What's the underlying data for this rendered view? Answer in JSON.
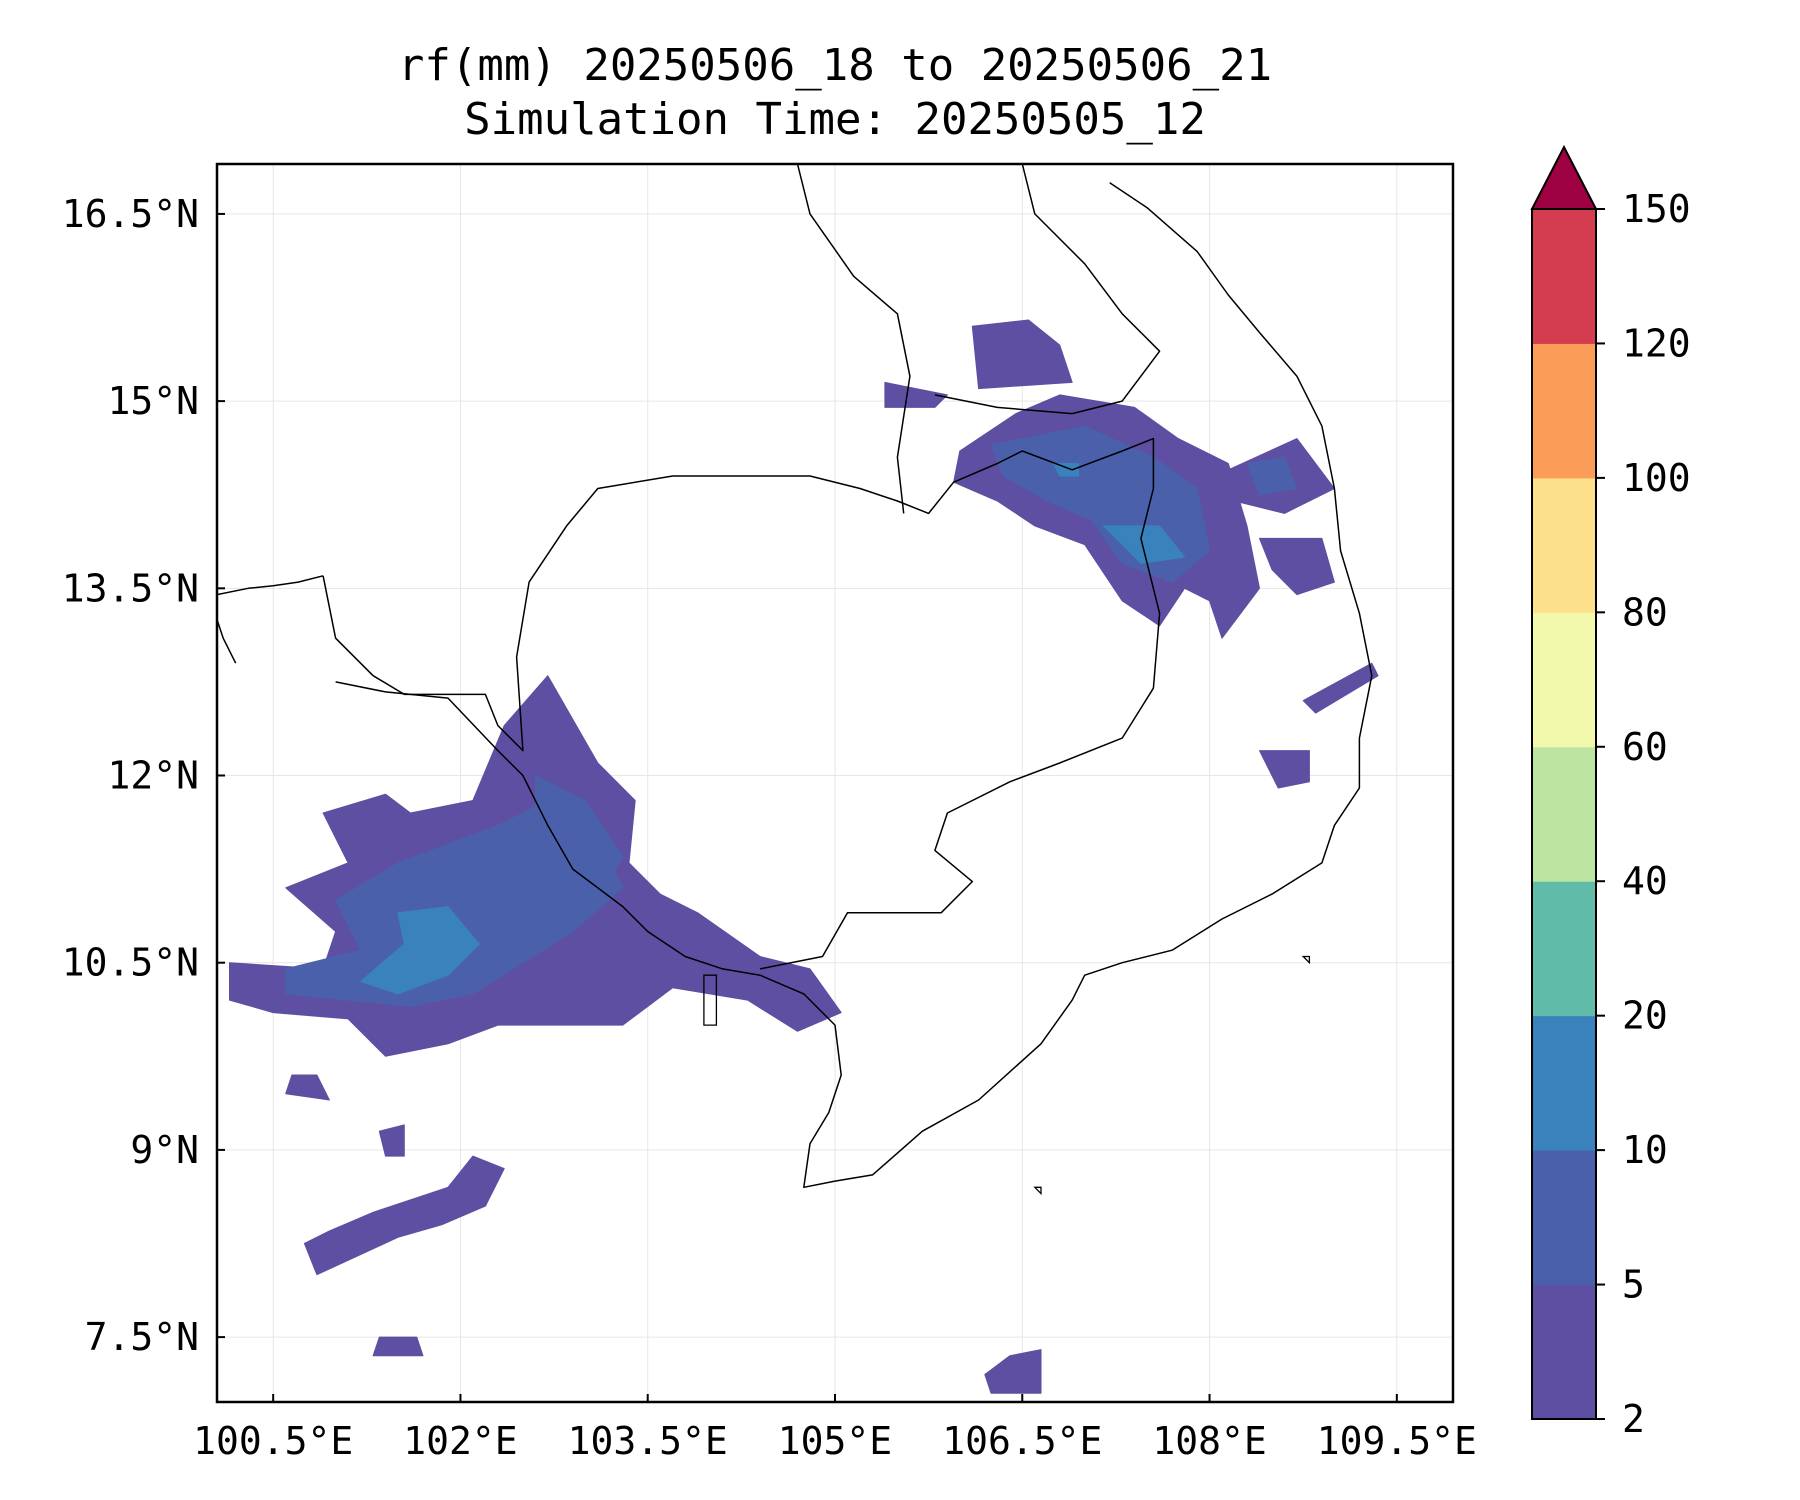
{
  "title": {
    "line1": "rf(mm) 20250506_18 to 20250506_21",
    "line2": "Simulation Time: 20250505_12"
  },
  "map": {
    "lon_range": [
      100.05,
      109.95
    ],
    "lat_range": [
      6.98,
      16.9
    ],
    "lon_ticks": [
      {
        "value": 100.5,
        "label": "100.5°E"
      },
      {
        "value": 102.0,
        "label": "102°E"
      },
      {
        "value": 103.5,
        "label": "103.5°E"
      },
      {
        "value": 105.0,
        "label": "105°E"
      },
      {
        "value": 106.5,
        "label": "106.5°E"
      },
      {
        "value": 108.0,
        "label": "108°E"
      },
      {
        "value": 109.5,
        "label": "109.5°E"
      }
    ],
    "lat_ticks": [
      {
        "value": 16.5,
        "label": "16.5°N"
      },
      {
        "value": 15.0,
        "label": "15°N"
      },
      {
        "value": 13.5,
        "label": "13.5°N"
      },
      {
        "value": 12.0,
        "label": "12°N"
      },
      {
        "value": 10.5,
        "label": "10.5°N"
      },
      {
        "value": 9.0,
        "label": "9°N"
      },
      {
        "value": 7.5,
        "label": "7.5°N"
      }
    ],
    "grid": true,
    "rain_areas": [
      {
        "level": 1,
        "points": [
          [
            100.15,
            10.5
          ],
          [
            100.9,
            10.45
          ],
          [
            101.0,
            10.75
          ],
          [
            100.6,
            11.1
          ],
          [
            101.1,
            11.3
          ],
          [
            100.9,
            11.7
          ],
          [
            101.4,
            11.85
          ],
          [
            101.6,
            11.7
          ],
          [
            102.1,
            11.8
          ],
          [
            102.35,
            12.4
          ],
          [
            102.7,
            12.8
          ],
          [
            103.1,
            12.1
          ],
          [
            103.4,
            11.8
          ],
          [
            103.35,
            11.3
          ],
          [
            103.6,
            11.05
          ],
          [
            103.9,
            10.9
          ],
          [
            104.4,
            10.55
          ],
          [
            104.8,
            10.45
          ],
          [
            105.05,
            10.1
          ],
          [
            104.7,
            9.95
          ],
          [
            104.3,
            10.2
          ],
          [
            103.7,
            10.3
          ],
          [
            103.3,
            10.0
          ],
          [
            102.8,
            10.0
          ],
          [
            102.3,
            10.0
          ],
          [
            101.9,
            9.85
          ],
          [
            101.4,
            9.75
          ],
          [
            101.1,
            10.05
          ],
          [
            100.5,
            10.1
          ],
          [
            100.15,
            10.2
          ]
        ]
      },
      {
        "level": 2,
        "points": [
          [
            100.6,
            10.45
          ],
          [
            101.2,
            10.6
          ],
          [
            101.0,
            11.0
          ],
          [
            101.5,
            11.3
          ],
          [
            101.9,
            11.45
          ],
          [
            102.3,
            11.6
          ],
          [
            102.8,
            11.85
          ],
          [
            103.1,
            11.5
          ],
          [
            103.3,
            11.1
          ],
          [
            102.9,
            10.75
          ],
          [
            102.5,
            10.5
          ],
          [
            102.1,
            10.25
          ],
          [
            101.6,
            10.15
          ],
          [
            101.1,
            10.2
          ],
          [
            100.6,
            10.25
          ]
        ]
      },
      {
        "level": 2,
        "points": [
          [
            102.6,
            12.0
          ],
          [
            103.0,
            11.8
          ],
          [
            103.3,
            11.35
          ],
          [
            103.1,
            11.0
          ],
          [
            102.8,
            11.4
          ],
          [
            102.6,
            11.7
          ]
        ]
      },
      {
        "level": 3,
        "points": [
          [
            101.2,
            10.35
          ],
          [
            101.55,
            10.65
          ],
          [
            101.5,
            10.9
          ],
          [
            101.9,
            10.95
          ],
          [
            102.15,
            10.65
          ],
          [
            101.9,
            10.4
          ],
          [
            101.5,
            10.25
          ]
        ]
      },
      {
        "level": 1,
        "points": [
          [
            100.85,
            8.0
          ],
          [
            101.5,
            8.3
          ],
          [
            101.85,
            8.4
          ],
          [
            102.2,
            8.55
          ],
          [
            102.35,
            8.85
          ],
          [
            102.1,
            8.95
          ],
          [
            101.9,
            8.7
          ],
          [
            101.6,
            8.6
          ],
          [
            101.3,
            8.5
          ],
          [
            100.95,
            8.35
          ],
          [
            100.75,
            8.25
          ]
        ]
      },
      {
        "level": 1,
        "points": [
          [
            101.35,
            9.15
          ],
          [
            101.55,
            9.2
          ],
          [
            101.55,
            8.95
          ],
          [
            101.4,
            8.95
          ]
        ]
      },
      {
        "level": 1,
        "points": [
          [
            101.3,
            7.35
          ],
          [
            101.7,
            7.35
          ],
          [
            101.65,
            7.5
          ],
          [
            101.35,
            7.5
          ]
        ]
      },
      {
        "level": 1,
        "points": [
          [
            100.6,
            9.45
          ],
          [
            100.95,
            9.4
          ],
          [
            100.85,
            9.6
          ],
          [
            100.65,
            9.6
          ]
        ]
      },
      {
        "level": 1,
        "points": [
          [
            106.25,
            7.05
          ],
          [
            106.65,
            7.05
          ],
          [
            106.65,
            7.4
          ],
          [
            106.4,
            7.35
          ],
          [
            106.2,
            7.2
          ]
        ]
      },
      {
        "level": 1,
        "points": [
          [
            106.0,
            14.6
          ],
          [
            106.45,
            14.9
          ],
          [
            106.8,
            15.05
          ],
          [
            107.4,
            14.95
          ],
          [
            107.75,
            14.7
          ],
          [
            108.15,
            14.5
          ],
          [
            108.3,
            14.0
          ],
          [
            108.4,
            13.5
          ],
          [
            108.1,
            13.1
          ],
          [
            108.0,
            13.4
          ],
          [
            107.8,
            13.5
          ],
          [
            107.6,
            13.2
          ],
          [
            107.3,
            13.4
          ],
          [
            107.0,
            13.85
          ],
          [
            106.6,
            14.0
          ],
          [
            106.3,
            14.2
          ],
          [
            105.95,
            14.35
          ]
        ]
      },
      {
        "level": 1,
        "points": [
          [
            106.15,
            15.1
          ],
          [
            106.9,
            15.15
          ],
          [
            106.8,
            15.45
          ],
          [
            106.55,
            15.65
          ],
          [
            106.1,
            15.6
          ]
        ]
      },
      {
        "level": 1,
        "points": [
          [
            108.15,
            14.45
          ],
          [
            108.7,
            14.7
          ],
          [
            109.0,
            14.3
          ],
          [
            108.6,
            14.1
          ],
          [
            108.2,
            14.2
          ]
        ]
      },
      {
        "level": 1,
        "points": [
          [
            108.4,
            13.9
          ],
          [
            108.9,
            13.9
          ],
          [
            109.0,
            13.55
          ],
          [
            108.7,
            13.45
          ],
          [
            108.5,
            13.65
          ]
        ]
      },
      {
        "level": 1,
        "points": [
          [
            108.4,
            12.2
          ],
          [
            108.8,
            12.2
          ],
          [
            108.8,
            11.95
          ],
          [
            108.55,
            11.9
          ]
        ]
      },
      {
        "level": 1,
        "points": [
          [
            108.75,
            12.6
          ],
          [
            109.3,
            12.9
          ],
          [
            109.35,
            12.8
          ],
          [
            108.85,
            12.5
          ]
        ]
      },
      {
        "level": 1,
        "points": [
          [
            105.4,
            15.15
          ],
          [
            105.9,
            15.05
          ],
          [
            105.8,
            14.95
          ],
          [
            105.4,
            14.95
          ]
        ]
      },
      {
        "level": 2,
        "points": [
          [
            106.25,
            14.65
          ],
          [
            107.0,
            14.8
          ],
          [
            107.55,
            14.55
          ],
          [
            107.9,
            14.3
          ],
          [
            108.0,
            13.8
          ],
          [
            107.7,
            13.55
          ],
          [
            107.3,
            13.7
          ],
          [
            107.05,
            14.05
          ],
          [
            106.7,
            14.2
          ],
          [
            106.35,
            14.4
          ]
        ]
      },
      {
        "level": 2,
        "points": [
          [
            108.3,
            14.5
          ],
          [
            108.6,
            14.55
          ],
          [
            108.7,
            14.3
          ],
          [
            108.4,
            14.25
          ]
        ]
      },
      {
        "level": 3,
        "points": [
          [
            107.15,
            14.0
          ],
          [
            107.6,
            14.0
          ],
          [
            107.8,
            13.75
          ],
          [
            107.45,
            13.7
          ]
        ]
      },
      {
        "level": 3,
        "points": [
          [
            106.75,
            14.5
          ],
          [
            106.95,
            14.5
          ],
          [
            106.95,
            14.4
          ],
          [
            106.8,
            14.4
          ]
        ]
      }
    ],
    "coastline_paths": [
      [
        [
          100.05,
          13.45
        ],
        [
          100.3,
          13.5
        ],
        [
          100.5,
          13.52
        ],
        [
          100.7,
          13.55
        ],
        [
          100.9,
          13.6
        ]
      ],
      [
        [
          100.05,
          13.25
        ],
        [
          100.1,
          13.1
        ],
        [
          100.2,
          12.9
        ]
      ],
      [
        [
          101.0,
          12.75
        ],
        [
          101.4,
          12.67
        ],
        [
          101.9,
          12.62
        ],
        [
          102.3,
          12.2
        ],
        [
          102.5,
          12.0
        ],
        [
          102.7,
          11.6
        ],
        [
          102.9,
          11.25
        ],
        [
          103.1,
          11.1
        ],
        [
          103.3,
          10.95
        ],
        [
          103.5,
          10.75
        ],
        [
          103.8,
          10.55
        ],
        [
          104.1,
          10.45
        ],
        [
          104.4,
          10.4
        ],
        [
          104.75,
          10.25
        ],
        [
          105.0,
          10.0
        ],
        [
          105.05,
          9.6
        ],
        [
          104.95,
          9.3
        ],
        [
          104.8,
          9.05
        ],
        [
          104.75,
          8.7
        ],
        [
          105.0,
          8.75
        ],
        [
          105.3,
          8.8
        ],
        [
          105.7,
          9.15
        ],
        [
          106.15,
          9.4
        ],
        [
          106.65,
          9.85
        ],
        [
          106.9,
          10.2
        ],
        [
          107.0,
          10.4
        ],
        [
          107.3,
          10.5
        ],
        [
          107.7,
          10.6
        ],
        [
          108.1,
          10.85
        ],
        [
          108.5,
          11.05
        ],
        [
          108.9,
          11.3
        ],
        [
          109.0,
          11.6
        ],
        [
          109.2,
          11.9
        ],
        [
          109.2,
          12.3
        ],
        [
          109.3,
          12.8
        ],
        [
          109.2,
          13.3
        ],
        [
          109.05,
          13.8
        ],
        [
          109.0,
          14.3
        ],
        [
          108.9,
          14.8
        ],
        [
          108.7,
          15.2
        ],
        [
          108.4,
          15.55
        ],
        [
          108.15,
          15.85
        ],
        [
          107.9,
          16.2
        ],
        [
          107.5,
          16.55
        ],
        [
          107.2,
          16.75
        ]
      ]
    ],
    "border_paths": [
      [
        [
          101.3,
          12.8
        ],
        [
          101.55,
          12.65
        ],
        [
          101.85,
          12.65
        ],
        [
          102.2,
          12.65
        ],
        [
          102.3,
          12.4
        ],
        [
          102.5,
          12.2
        ],
        [
          102.45,
          12.95
        ],
        [
          102.55,
          13.55
        ],
        [
          102.85,
          14.0
        ],
        [
          103.1,
          14.3
        ],
        [
          103.7,
          14.4
        ],
        [
          104.3,
          14.4
        ],
        [
          104.8,
          14.4
        ],
        [
          105.2,
          14.3
        ],
        [
          105.5,
          14.2
        ],
        [
          105.75,
          14.1
        ],
        [
          105.95,
          14.35
        ],
        [
          106.3,
          14.5
        ],
        [
          106.5,
          14.6
        ],
        [
          106.9,
          14.45
        ],
        [
          107.3,
          14.6
        ],
        [
          107.55,
          14.7
        ],
        [
          107.55,
          14.3
        ],
        [
          107.45,
          13.9
        ],
        [
          107.6,
          13.3
        ],
        [
          107.55,
          12.7
        ],
        [
          107.3,
          12.3
        ],
        [
          106.8,
          12.1
        ],
        [
          106.4,
          11.95
        ],
        [
          105.9,
          11.7
        ],
        [
          105.8,
          11.4
        ],
        [
          106.1,
          11.15
        ],
        [
          105.85,
          10.9
        ],
        [
          105.1,
          10.9
        ],
        [
          104.9,
          10.55
        ],
        [
          104.4,
          10.45
        ]
      ],
      [
        [
          105.55,
          14.1
        ],
        [
          105.5,
          14.55
        ],
        [
          105.6,
          15.2
        ],
        [
          105.5,
          15.7
        ],
        [
          105.15,
          16.0
        ],
        [
          104.8,
          16.5
        ],
        [
          104.7,
          16.9
        ]
      ],
      [
        [
          105.8,
          15.05
        ],
        [
          106.3,
          14.95
        ],
        [
          106.9,
          14.9
        ],
        [
          107.3,
          15.0
        ],
        [
          107.6,
          15.4
        ],
        [
          107.3,
          15.7
        ],
        [
          107.0,
          16.1
        ],
        [
          106.6,
          16.5
        ],
        [
          106.5,
          16.9
        ]
      ],
      [
        [
          100.9,
          13.6
        ],
        [
          101.0,
          13.1
        ],
        [
          101.2,
          12.9
        ],
        [
          101.3,
          12.8
        ]
      ]
    ],
    "islands": [
      [
        [
          103.95,
          10.4
        ],
        [
          104.05,
          10.4
        ],
        [
          104.05,
          10.0
        ],
        [
          103.95,
          10.0
        ]
      ],
      [
        [
          108.75,
          10.55
        ],
        [
          108.8,
          10.55
        ],
        [
          108.8,
          10.5
        ]
      ],
      [
        [
          106.6,
          8.7
        ],
        [
          106.65,
          8.7
        ],
        [
          106.65,
          8.65
        ]
      ]
    ]
  },
  "colorbar": {
    "levels": [
      2,
      5,
      10,
      20,
      40,
      60,
      80,
      100,
      120,
      150
    ],
    "tick_labels": [
      "2",
      "5",
      "10",
      "20",
      "40",
      "60",
      "80",
      "100",
      "120",
      "150"
    ],
    "colors": [
      "#5e4fa2",
      "#4a60ab",
      "#3a82bc",
      "#60bba8",
      "#bde4a0",
      "#f2f9ac",
      "#fde18a",
      "#fb9d59",
      "#d43d4f"
    ],
    "extend_color": "#9e0142",
    "extend": "max"
  }
}
